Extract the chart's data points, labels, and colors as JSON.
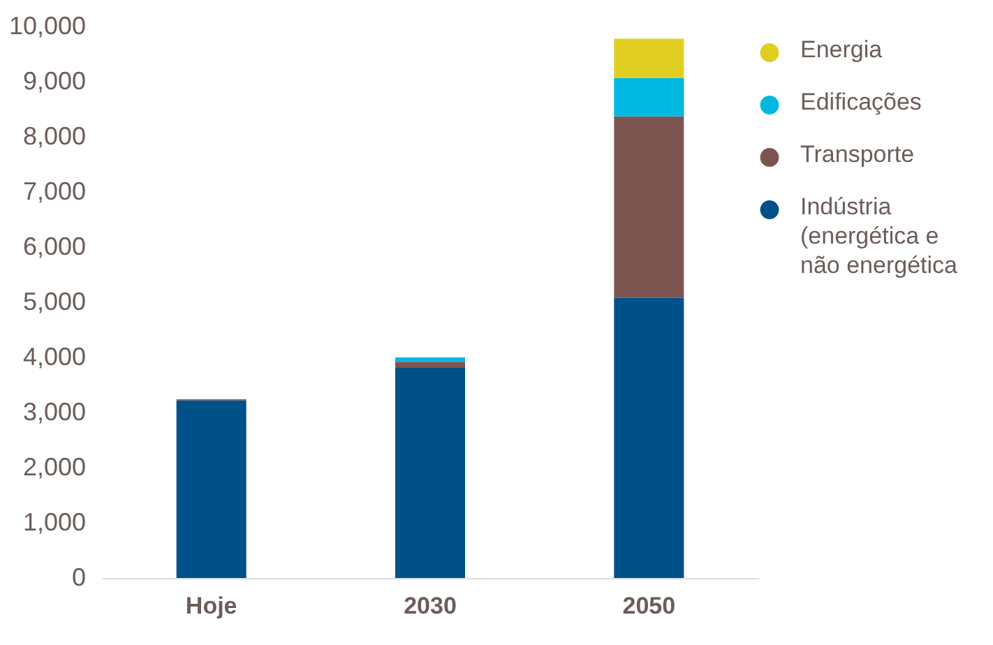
{
  "chart_data": {
    "type": "bar",
    "stacked": true,
    "categories": [
      "Hoje",
      "2030",
      "2050"
    ],
    "series": [
      {
        "name": "Indústria (energética e não energética",
        "color": "#005089",
        "values": [
          3220,
          3810,
          5080
        ]
      },
      {
        "name": "Transporte",
        "color": "#7d5550",
        "values": [
          20,
          110,
          3290
        ]
      },
      {
        "name": "Edificações",
        "color": "#00b8e0",
        "values": [
          0,
          80,
          700
        ]
      },
      {
        "name": "Energia",
        "color": "#e0cf20",
        "values": [
          0,
          0,
          710
        ]
      }
    ],
    "ylim": [
      0,
      10000
    ],
    "yticks": [
      0,
      {
        "value": 1000,
        "label": "1,000"
      },
      {
        "value": 2000,
        "label": "2,000"
      },
      {
        "value": 3000,
        "label": "3,000"
      },
      {
        "value": 4000,
        "label": "4,000"
      },
      {
        "value": 5000,
        "label": "5,000"
      },
      {
        "value": 6000,
        "label": "6,000"
      },
      {
        "value": 7000,
        "label": "7,000"
      },
      {
        "value": 8000,
        "label": "8,000"
      },
      {
        "value": 9000,
        "label": "9,000"
      },
      {
        "value": 10000,
        "label": "10,000"
      }
    ],
    "grid": false,
    "legend": "right"
  }
}
